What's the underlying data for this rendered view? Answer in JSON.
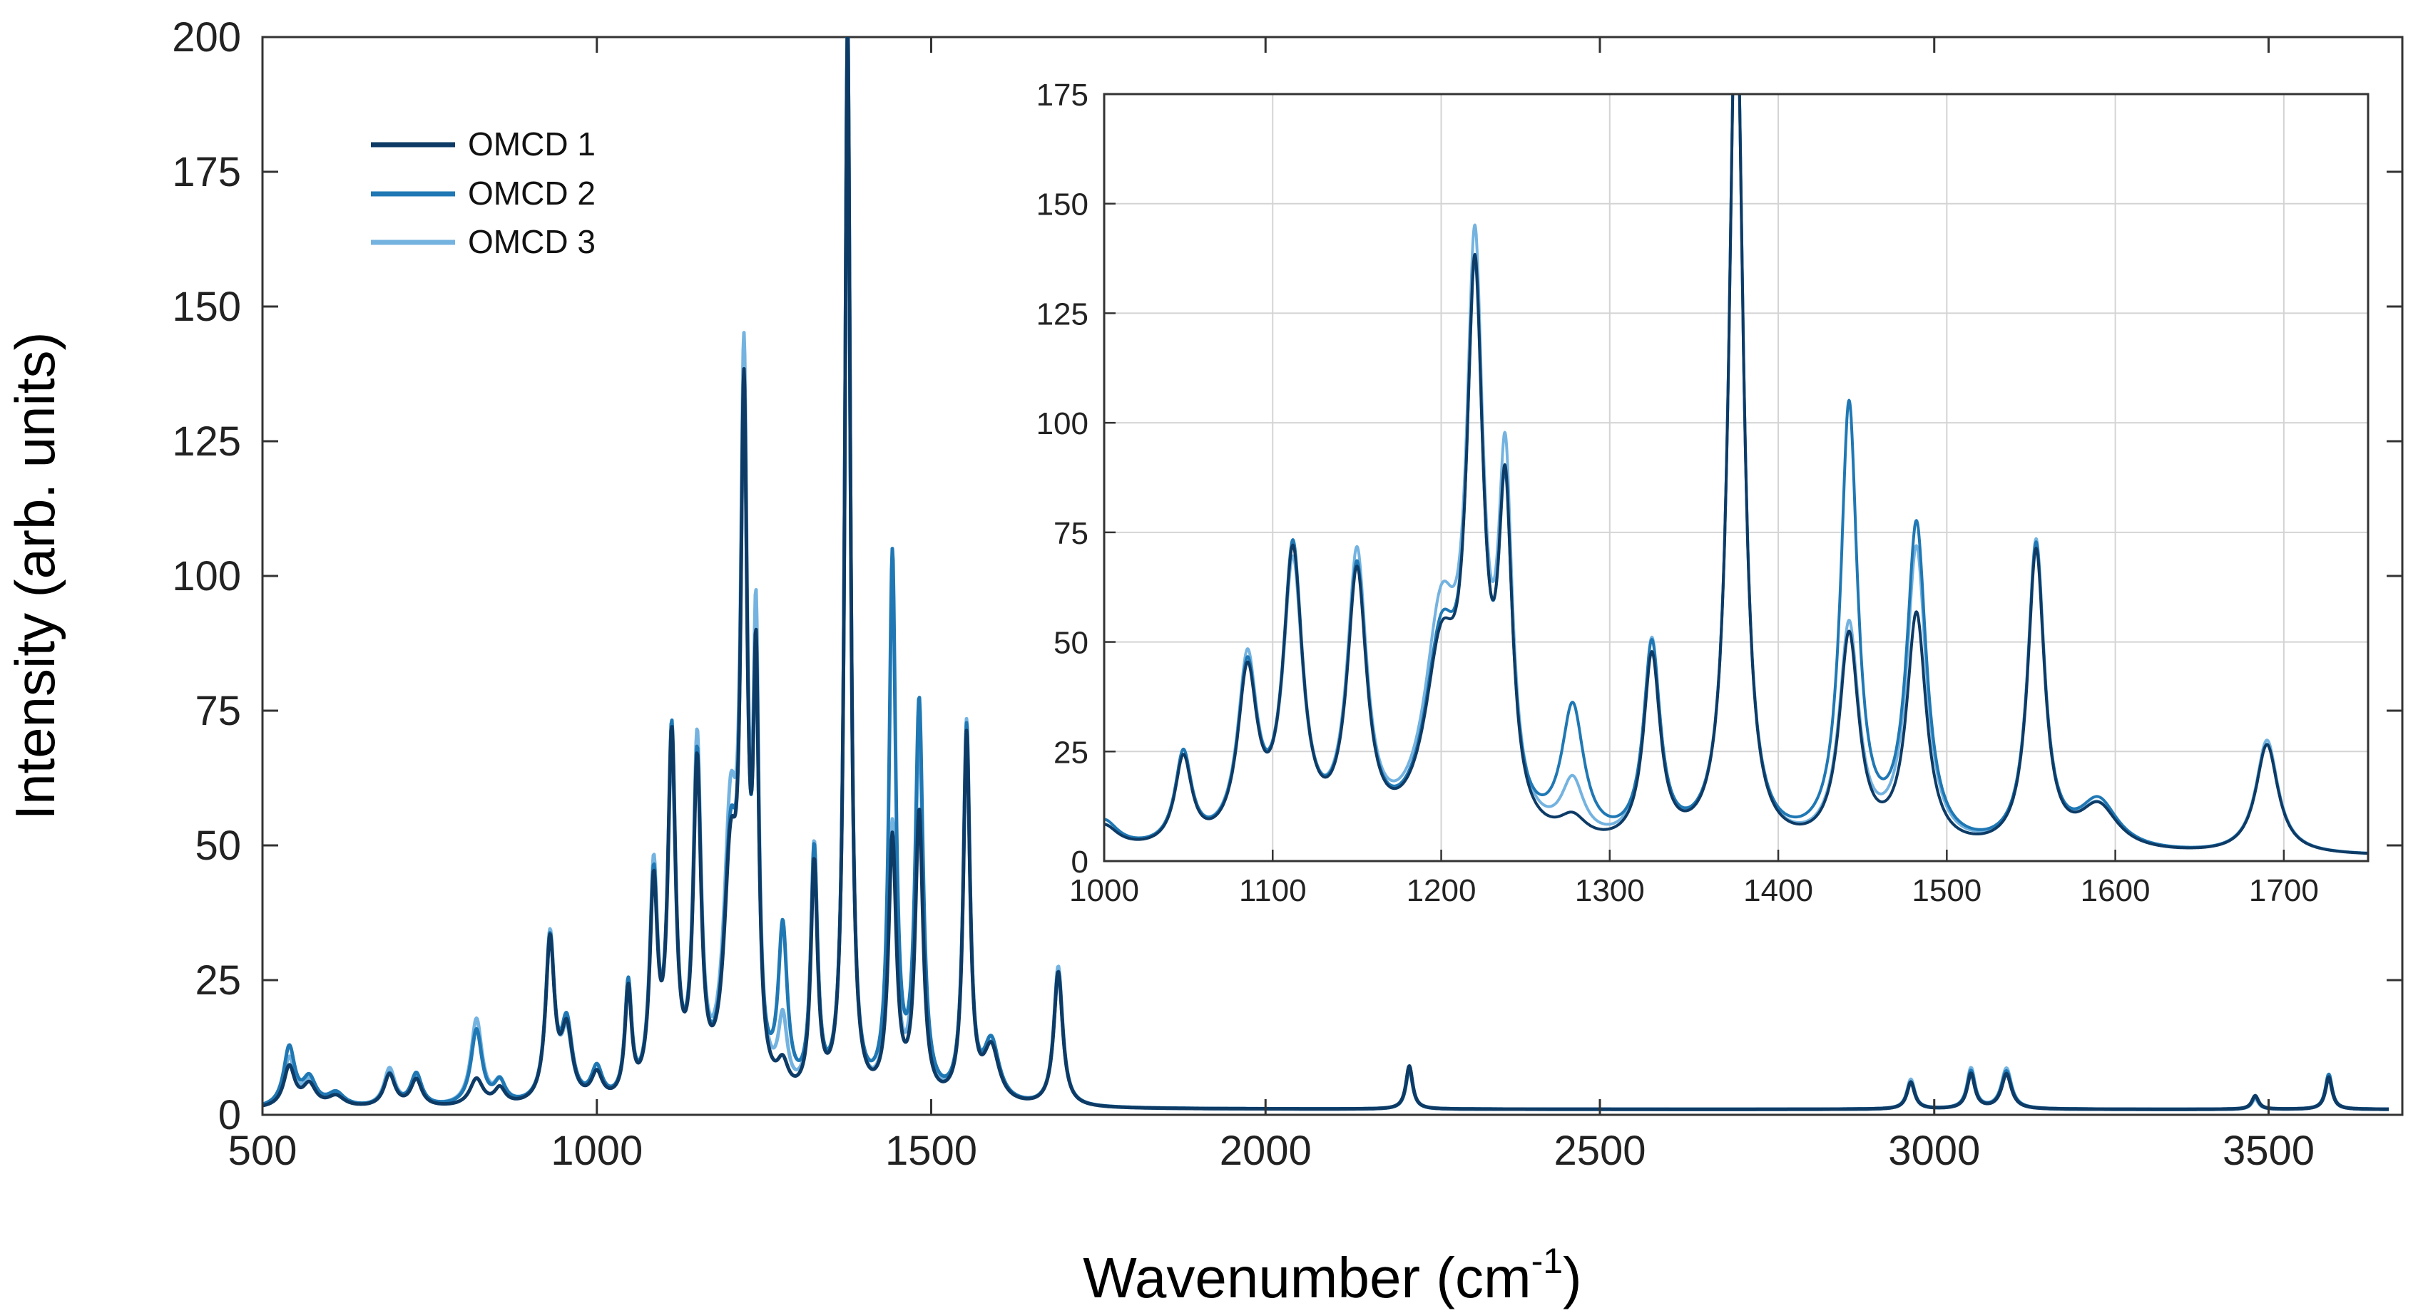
{
  "chart_data": [
    {
      "type": "line",
      "role": "main",
      "title": "",
      "xlabel_main": "Wavenumber (cm",
      "xlabel_sup": "-1",
      "xlabel_end": ")",
      "ylabel": "Intensity (arb. units)",
      "xlim": [
        500,
        3700
      ],
      "ylim": [
        0,
        200
      ],
      "xticks": [
        500,
        1000,
        1500,
        2000,
        2500,
        3000,
        3500
      ],
      "yticks": [
        0,
        25,
        50,
        75,
        100,
        125,
        150,
        175,
        200
      ],
      "grid": false,
      "legend_position": "top-left",
      "baseline": 1,
      "series": [
        {
          "name": "OMCD 1",
          "color": "#0d3b66",
          "values_at_peaks": "see peaks",
          "peaks": [
            [
              540,
              7.5,
              10
            ],
            [
              570,
              4,
              12
            ],
            [
              610,
              2,
              15
            ],
            [
              690,
              6,
              10
            ],
            [
              730,
              5,
              10
            ],
            [
              820,
              5,
              12
            ],
            [
              855,
              3,
              10
            ],
            [
              930,
              30,
              8
            ],
            [
              955,
              13,
              10
            ],
            [
              1000,
              5,
              10
            ],
            [
              1047,
              20,
              6
            ],
            [
              1085,
              38,
              7
            ],
            [
              1112,
              65,
              7
            ],
            [
              1150,
              60,
              7
            ],
            [
              1200,
              40,
              12
            ],
            [
              1220,
              120,
              6
            ],
            [
              1238,
              72,
              5
            ],
            [
              1278,
              5,
              10
            ],
            [
              1325,
              43,
              6
            ],
            [
              1375,
              200,
              5
            ],
            [
              1442,
              48,
              7
            ],
            [
              1482,
              53,
              7
            ],
            [
              1553,
              68,
              6
            ],
            [
              1590,
              10,
              14
            ],
            [
              1690,
              25,
              8
            ],
            [
              2215,
              8,
              6
            ],
            [
              2965,
              5,
              7
            ],
            [
              3055,
              6.5,
              7
            ],
            [
              3108,
              6.5,
              9
            ],
            [
              3480,
              2.5,
              6
            ],
            [
              3590,
              6,
              6
            ]
          ]
        },
        {
          "name": "OMCD 2",
          "color": "#1f78b4",
          "peaks": [
            [
              540,
              11,
              10
            ],
            [
              570,
              5,
              12
            ],
            [
              610,
              2.5,
              15
            ],
            [
              690,
              6,
              10
            ],
            [
              730,
              6,
              10
            ],
            [
              820,
              14,
              10
            ],
            [
              855,
              4,
              10
            ],
            [
              930,
              30,
              8
            ],
            [
              955,
              14,
              10
            ],
            [
              1000,
              6,
              10
            ],
            [
              1047,
              21,
              6
            ],
            [
              1085,
              39,
              7
            ],
            [
              1112,
              66,
              7
            ],
            [
              1150,
              61,
              7
            ],
            [
              1200,
              42,
              12
            ],
            [
              1220,
              118,
              6
            ],
            [
              1238,
              70,
              5
            ],
            [
              1278,
              30,
              8
            ],
            [
              1325,
              45,
              6
            ],
            [
              1375,
              200,
              5
            ],
            [
              1442,
              100,
              6
            ],
            [
              1482,
              73,
              7
            ],
            [
              1553,
              69,
              6
            ],
            [
              1590,
              11,
              14
            ],
            [
              1690,
              25,
              8
            ],
            [
              2215,
              8,
              6
            ],
            [
              2965,
              5,
              7
            ],
            [
              3055,
              7,
              7
            ],
            [
              3108,
              7,
              9
            ],
            [
              3480,
              2.5,
              6
            ],
            [
              3590,
              6.5,
              6
            ]
          ]
        },
        {
          "name": "OMCD 3",
          "color": "#74b3e0",
          "peaks": [
            [
              540,
              9,
              10
            ],
            [
              570,
              4.5,
              12
            ],
            [
              610,
              2,
              15
            ],
            [
              690,
              7,
              10
            ],
            [
              730,
              5.5,
              10
            ],
            [
              820,
              16,
              10
            ],
            [
              855,
              4,
              10
            ],
            [
              930,
              31,
              8
            ],
            [
              955,
              12,
              10
            ],
            [
              1000,
              5,
              10
            ],
            [
              1047,
              21,
              6
            ],
            [
              1085,
              41,
              7
            ],
            [
              1112,
              62,
              7
            ],
            [
              1150,
              64,
              7
            ],
            [
              1200,
              48,
              12
            ],
            [
              1220,
              124,
              6
            ],
            [
              1238,
              78,
              5
            ],
            [
              1278,
              13,
              8
            ],
            [
              1325,
              46,
              6
            ],
            [
              1375,
              200,
              5
            ],
            [
              1442,
              50,
              7
            ],
            [
              1482,
              68,
              7
            ],
            [
              1553,
              70,
              6
            ],
            [
              1590,
              10,
              14
            ],
            [
              1690,
              26,
              8
            ],
            [
              2215,
              7.5,
              6
            ],
            [
              2965,
              5.5,
              7
            ],
            [
              3055,
              7.5,
              7
            ],
            [
              3108,
              7.5,
              9
            ],
            [
              3480,
              2,
              6
            ],
            [
              3590,
              6,
              6
            ]
          ]
        }
      ]
    },
    {
      "type": "line",
      "role": "inset",
      "title": "",
      "xlim": [
        1000,
        1750
      ],
      "ylim": [
        0,
        175
      ],
      "xticks": [
        1000,
        1100,
        1200,
        1300,
        1400,
        1500,
        1600,
        1700
      ],
      "yticks": [
        0,
        25,
        50,
        75,
        100,
        125,
        150,
        175
      ],
      "grid": true,
      "note": "zoom of 1000–1750 cm-1 region of the same three series"
    }
  ],
  "legend": [
    {
      "label": "OMCD 1",
      "color": "#0d3b66"
    },
    {
      "label": "OMCD 2",
      "color": "#1f78b4"
    },
    {
      "label": "OMCD 3",
      "color": "#74b3e0"
    }
  ]
}
